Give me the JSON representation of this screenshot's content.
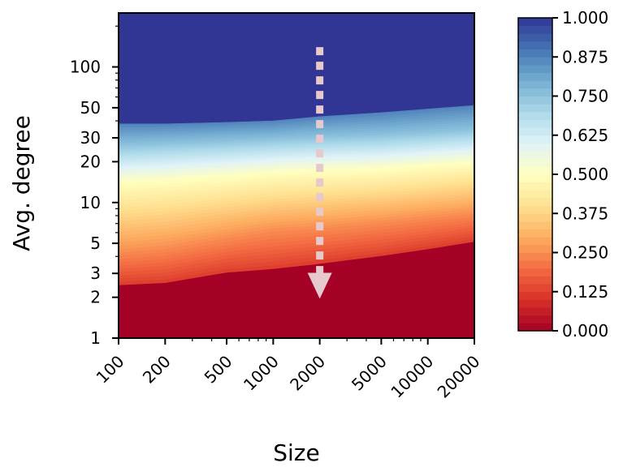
{
  "chart_data": {
    "type": "heatmap",
    "title": "",
    "xlabel": "Size",
    "ylabel": "Avg. degree",
    "x_scale": "log",
    "y_scale": "log",
    "xlim": [
      100,
      20000
    ],
    "ylim": [
      1,
      250
    ],
    "x_ticks": [
      {
        "value": 100,
        "label": "100"
      },
      {
        "value": 200,
        "label": "200"
      },
      {
        "value": 500,
        "label": "500"
      },
      {
        "value": 1000,
        "label": "1000"
      },
      {
        "value": 2000,
        "label": "2000"
      },
      {
        "value": 5000,
        "label": "5000"
      },
      {
        "value": 10000,
        "label": "10000"
      },
      {
        "value": 20000,
        "label": "20000"
      }
    ],
    "y_ticks": [
      {
        "value": 1,
        "label": "1"
      },
      {
        "value": 2,
        "label": "2"
      },
      {
        "value": 3,
        "label": "3"
      },
      {
        "value": 5,
        "label": "5"
      },
      {
        "value": 10,
        "label": "10"
      },
      {
        "value": 20,
        "label": "20"
      },
      {
        "value": 30,
        "label": "30"
      },
      {
        "value": 50,
        "label": "50"
      },
      {
        "value": 100,
        "label": "100"
      }
    ],
    "colorbar": {
      "colormap": "RdYlBu",
      "range": [
        0,
        1
      ],
      "tick_labels": [
        "0.000",
        "0.125",
        "0.250",
        "0.375",
        "0.500",
        "0.625",
        "0.750",
        "0.875",
        "1.000"
      ]
    },
    "contour_levels": {
      "x": [
        100,
        200,
        500,
        1000,
        2000,
        5000,
        10000,
        20000
      ],
      "avg_degree_at_0_125": [
        2.5,
        2.6,
        3.1,
        3.3,
        3.6,
        4.1,
        4.6,
        5.2
      ],
      "avg_degree_at_0_25": [
        4.3,
        4.6,
        5.5,
        6.2,
        6.5,
        7.1,
        7.7,
        8.3
      ],
      "avg_degree_at_0_5": [
        14,
        14.5,
        15.5,
        16.5,
        17,
        17.5,
        18.5,
        19.5
      ],
      "avg_degree_at_0_75": [
        26,
        27,
        28,
        29,
        30,
        31,
        32.5,
        34
      ],
      "avg_degree_at_0_875": [
        38,
        38,
        39,
        40,
        43,
        46,
        49,
        52
      ]
    },
    "annotation": {
      "type": "dashed-arrow",
      "direction": "down",
      "x": 2000,
      "y_from": 140,
      "y_to": 2.3,
      "color": "#e6c9cc"
    },
    "grid": false,
    "colors": {
      "low": "#a50026",
      "mid": "#ffffbf",
      "high": "#313695"
    }
  }
}
